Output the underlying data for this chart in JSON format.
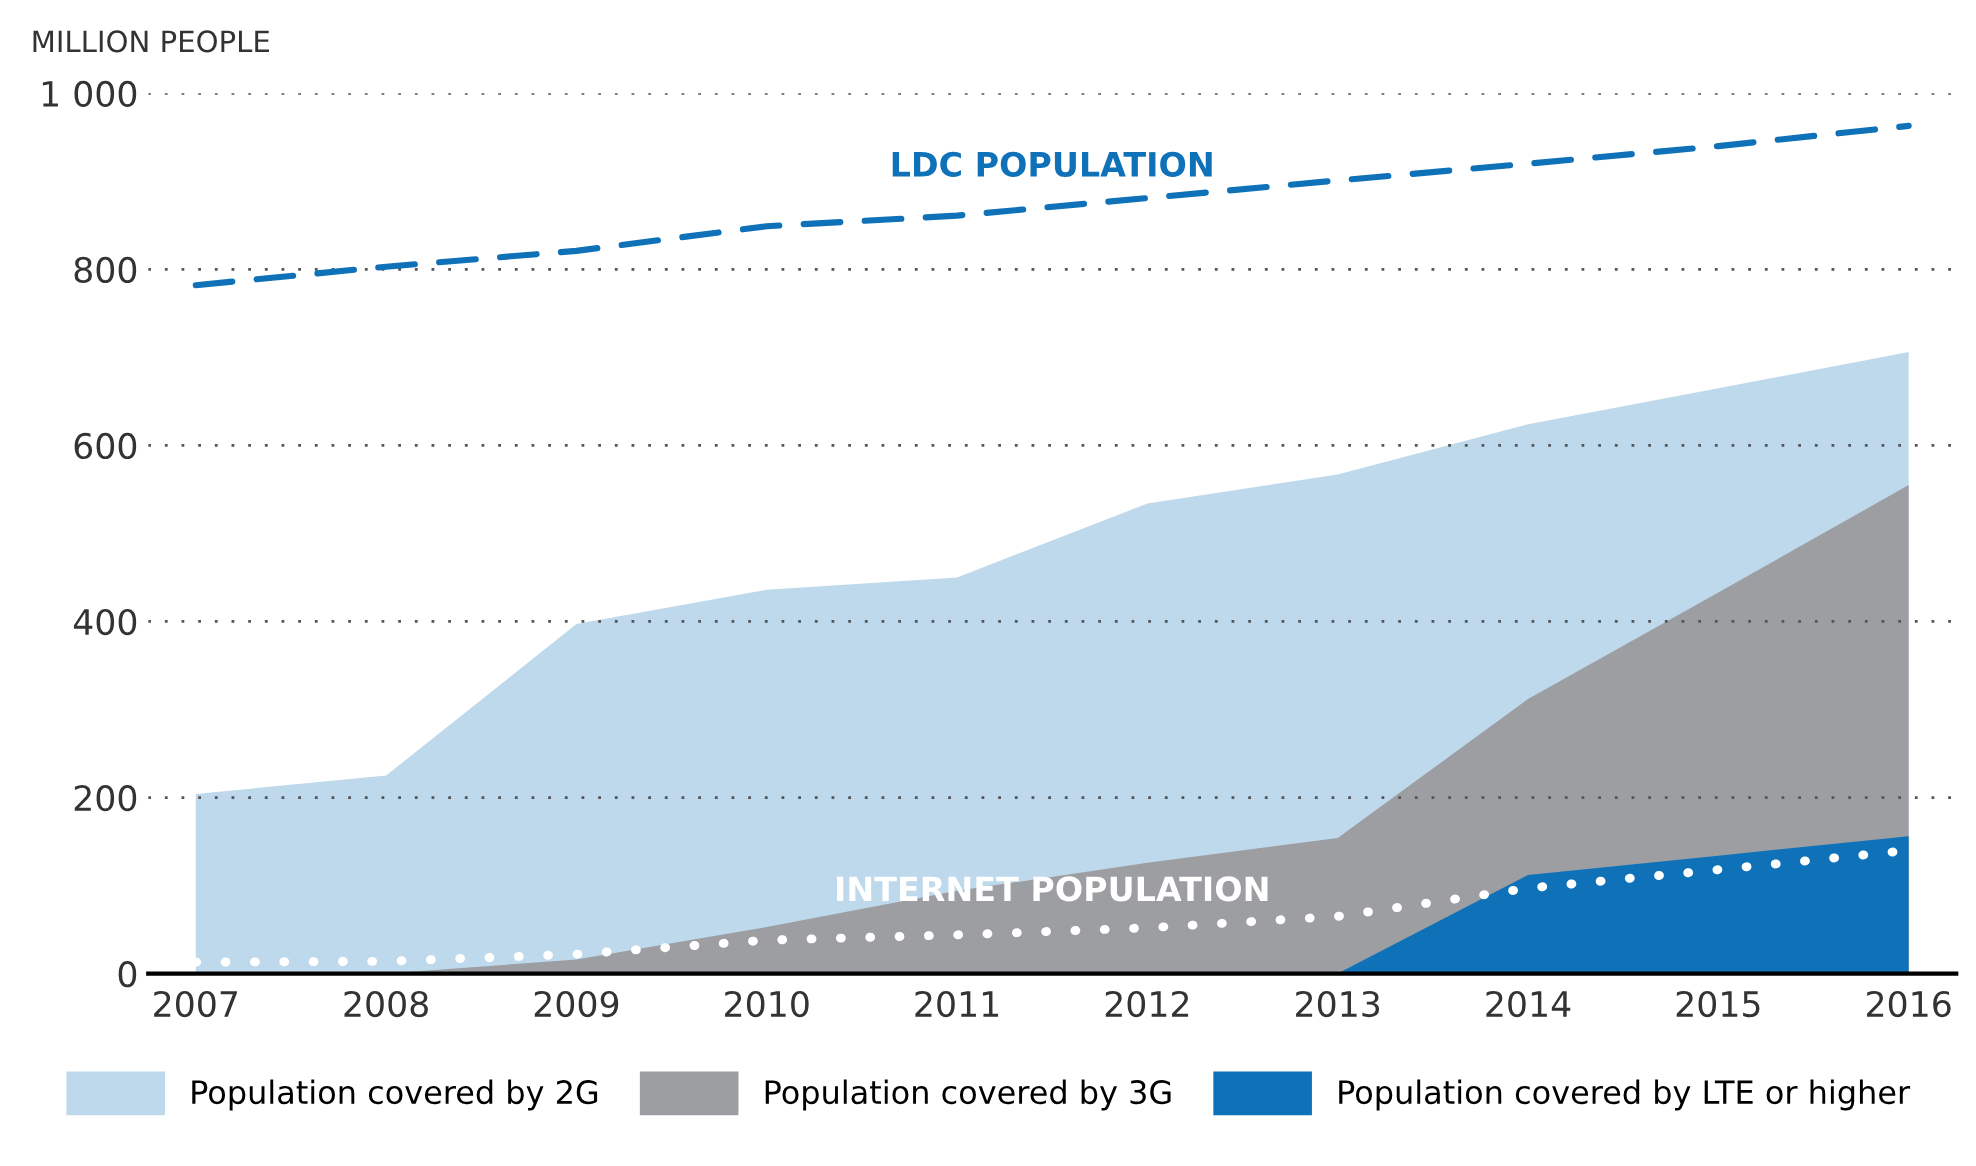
{
  "chart_data": {
    "type": "area",
    "ylabel": "MILLION PEOPLE",
    "x": [
      2007,
      2008,
      2009,
      2010,
      2011,
      2012,
      2013,
      2014,
      2015,
      2016
    ],
    "series": [
      {
        "name": "Population covered by 2G",
        "color": "#bfd9ec",
        "values": [
          204,
          225,
          397,
          436,
          450,
          534,
          567,
          624,
          665,
          706
        ]
      },
      {
        "name": "Population covered by 3G",
        "color": "#9d9ea2",
        "values": [
          0,
          0,
          16,
          53,
          94,
          126,
          154,
          312,
          433,
          555
        ]
      },
      {
        "name": "Population covered by LTE or higher",
        "color": "#0f72b9",
        "values": [
          null,
          null,
          null,
          null,
          null,
          null,
          0,
          112,
          134,
          156
        ]
      },
      {
        "name": "LDC POPULATION",
        "type": "line",
        "color": "#0f72b9",
        "line_style": "dashed",
        "values": [
          782,
          803,
          821,
          849,
          861,
          881,
          901,
          920,
          940,
          963
        ]
      },
      {
        "name": "INTERNET POPULATION",
        "type": "line",
        "color": "#ffffff",
        "line_style": "dotted",
        "values": [
          13,
          14,
          22,
          38,
          44,
          52,
          65,
          97,
          118,
          140
        ]
      }
    ],
    "xlim": [
      2006.75,
      2016.25
    ],
    "ylim": [
      0,
      1000
    ],
    "xticks": [
      2007,
      2008,
      2009,
      2010,
      2011,
      2012,
      2013,
      2014,
      2015,
      2016
    ],
    "yticks": [
      0,
      200,
      400,
      600,
      800,
      {
        "value": 1000,
        "label": "1 000"
      }
    ],
    "grid": "y",
    "legend": "bottom"
  }
}
